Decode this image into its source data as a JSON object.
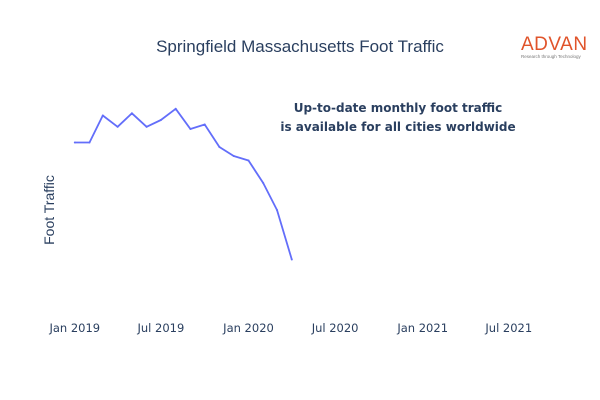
{
  "chart_data": {
    "type": "line",
    "title": "Springfield Massachusetts Foot Traffic",
    "xlabel": "",
    "ylabel": "Foot Traffic",
    "x_axis_type": "date",
    "x_range": [
      "2018-11-10",
      "2021-09-15"
    ],
    "x_ticks": [
      {
        "date": "2019-01-01",
        "label": "Jan 2019"
      },
      {
        "date": "2019-07-01",
        "label": "Jul 2019"
      },
      {
        "date": "2020-01-01",
        "label": "Jan 2020"
      },
      {
        "date": "2020-07-01",
        "label": "Jul 2020"
      },
      {
        "date": "2021-01-01",
        "label": "Jan 2021"
      },
      {
        "date": "2021-07-01",
        "label": "Jul 2021"
      }
    ],
    "y_tick_labels_shown": false,
    "ylim": [
      0,
      100
    ],
    "grid": false,
    "series": [
      {
        "color": "#636efa",
        "x": [
          "2019-01-01",
          "2019-02-01",
          "2019-03-01",
          "2019-04-01",
          "2019-05-01",
          "2019-06-01",
          "2019-07-01",
          "2019-08-01",
          "2019-09-01",
          "2019-10-01",
          "2019-11-01",
          "2019-12-01",
          "2020-01-01",
          "2020-02-01",
          "2020-03-01",
          "2020-04-01"
        ],
        "y": [
          70,
          70,
          82,
          77,
          83,
          77,
          80,
          85,
          76,
          78,
          68,
          64,
          62,
          52,
          40,
          18
        ]
      }
    ],
    "annotation": {
      "lines": [
        "Up-to-date monthly foot traffic",
        "is available for all cities worldwide"
      ]
    }
  },
  "logo": {
    "text": "ADVAN",
    "tagline": "Research through Technology",
    "color": "#e0542b"
  }
}
